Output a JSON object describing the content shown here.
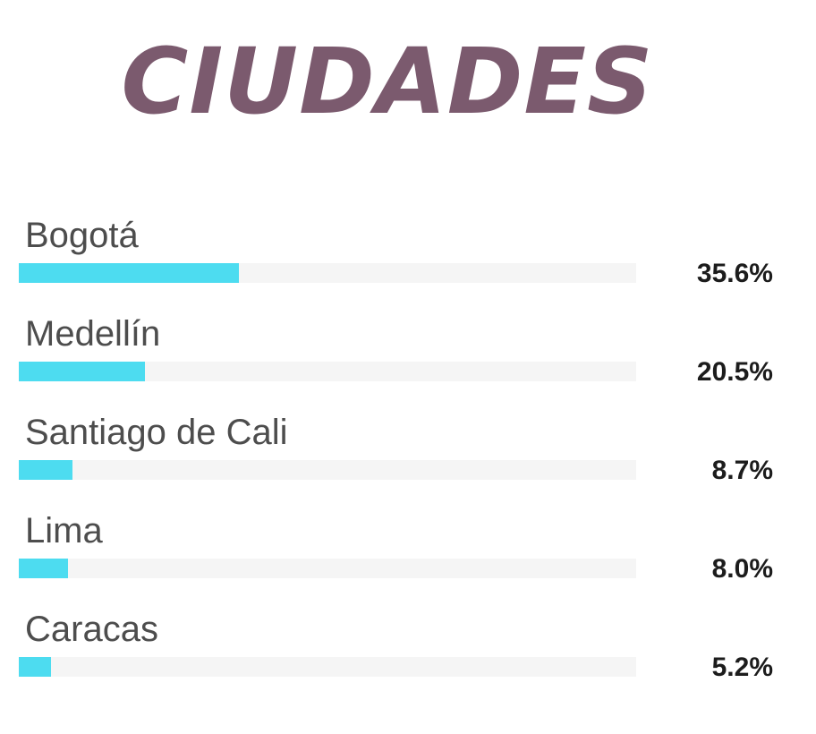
{
  "chart_data": {
    "type": "bar",
    "title": "CIUDADES",
    "orientation": "horizontal",
    "categories": [
      "Bogotá",
      "Medellín",
      "Santiago de Cali",
      "Lima",
      "Caracas"
    ],
    "values": [
      35.6,
      20.5,
      8.7,
      8.0,
      5.2
    ],
    "value_labels": [
      "35.6%",
      "20.5%",
      "8.7%",
      "8.0%",
      "5.2%"
    ],
    "unit": "%",
    "xlim": [
      0,
      100
    ],
    "grid": false,
    "colors": {
      "bar": "#4ddcf0",
      "track": "#f5f5f5",
      "title": "#7b5a6e"
    }
  }
}
